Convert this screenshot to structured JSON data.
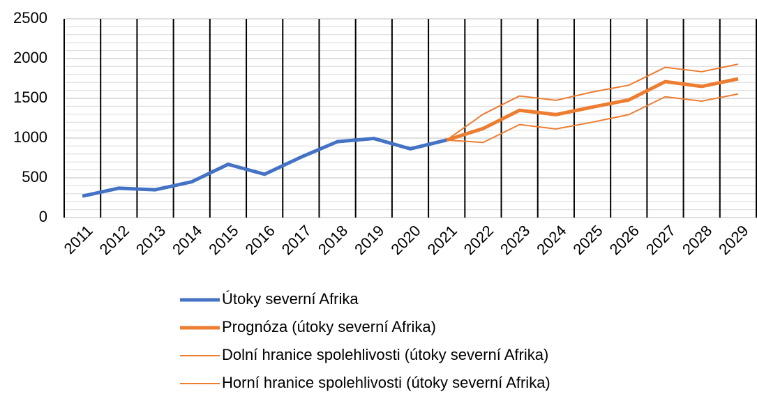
{
  "chart_data": {
    "type": "line",
    "categories": [
      "2011",
      "2012",
      "2013",
      "2014",
      "2015",
      "2016",
      "2017",
      "2018",
      "2019",
      "2020",
      "2021",
      "2022",
      "2023",
      "2024",
      "2025",
      "2026",
      "2027",
      "2028",
      "2029"
    ],
    "series": [
      {
        "name": "Útoky severní Afrika",
        "color": "#4472c4",
        "line_width": 5,
        "values": [
          270,
          370,
          350,
          450,
          670,
          545,
          760,
          955,
          995,
          865,
          975,
          null,
          null,
          null,
          null,
          null,
          null,
          null,
          null
        ]
      },
      {
        "name": "Prognóza (útoky severní Afrika)",
        "color": "#ed7d31",
        "line_width": 5,
        "values": [
          null,
          null,
          null,
          null,
          null,
          null,
          null,
          null,
          null,
          null,
          975,
          1120,
          1350,
          1295,
          1390,
          1480,
          1710,
          1650,
          1745
        ]
      },
      {
        "name": "Dolní hranice spolehlivosti (útoky severní Afrika)",
        "color": "#ed7d31",
        "line_width": 2,
        "values": [
          null,
          null,
          null,
          null,
          null,
          null,
          null,
          null,
          null,
          null,
          975,
          945,
          1170,
          1115,
          1200,
          1295,
          1520,
          1465,
          1555
        ]
      },
      {
        "name": "Horní hranice spolehlivosti (útoky severní Afrika)",
        "color": "#ed7d31",
        "line_width": 2,
        "values": [
          null,
          null,
          null,
          null,
          null,
          null,
          null,
          null,
          null,
          null,
          975,
          1300,
          1530,
          1475,
          1580,
          1665,
          1890,
          1835,
          1930
        ]
      }
    ],
    "ylim": [
      0,
      2500
    ],
    "yticks": [
      0,
      500,
      1000,
      1500,
      2000,
      2500
    ],
    "minor_yticks": [
      100,
      200,
      300,
      400,
      600,
      700,
      800,
      900,
      1100,
      1200,
      1300,
      1400,
      1600,
      1700,
      1800,
      1900,
      2100,
      2200,
      2300,
      2400
    ],
    "grid": true,
    "legend": "bottom"
  }
}
